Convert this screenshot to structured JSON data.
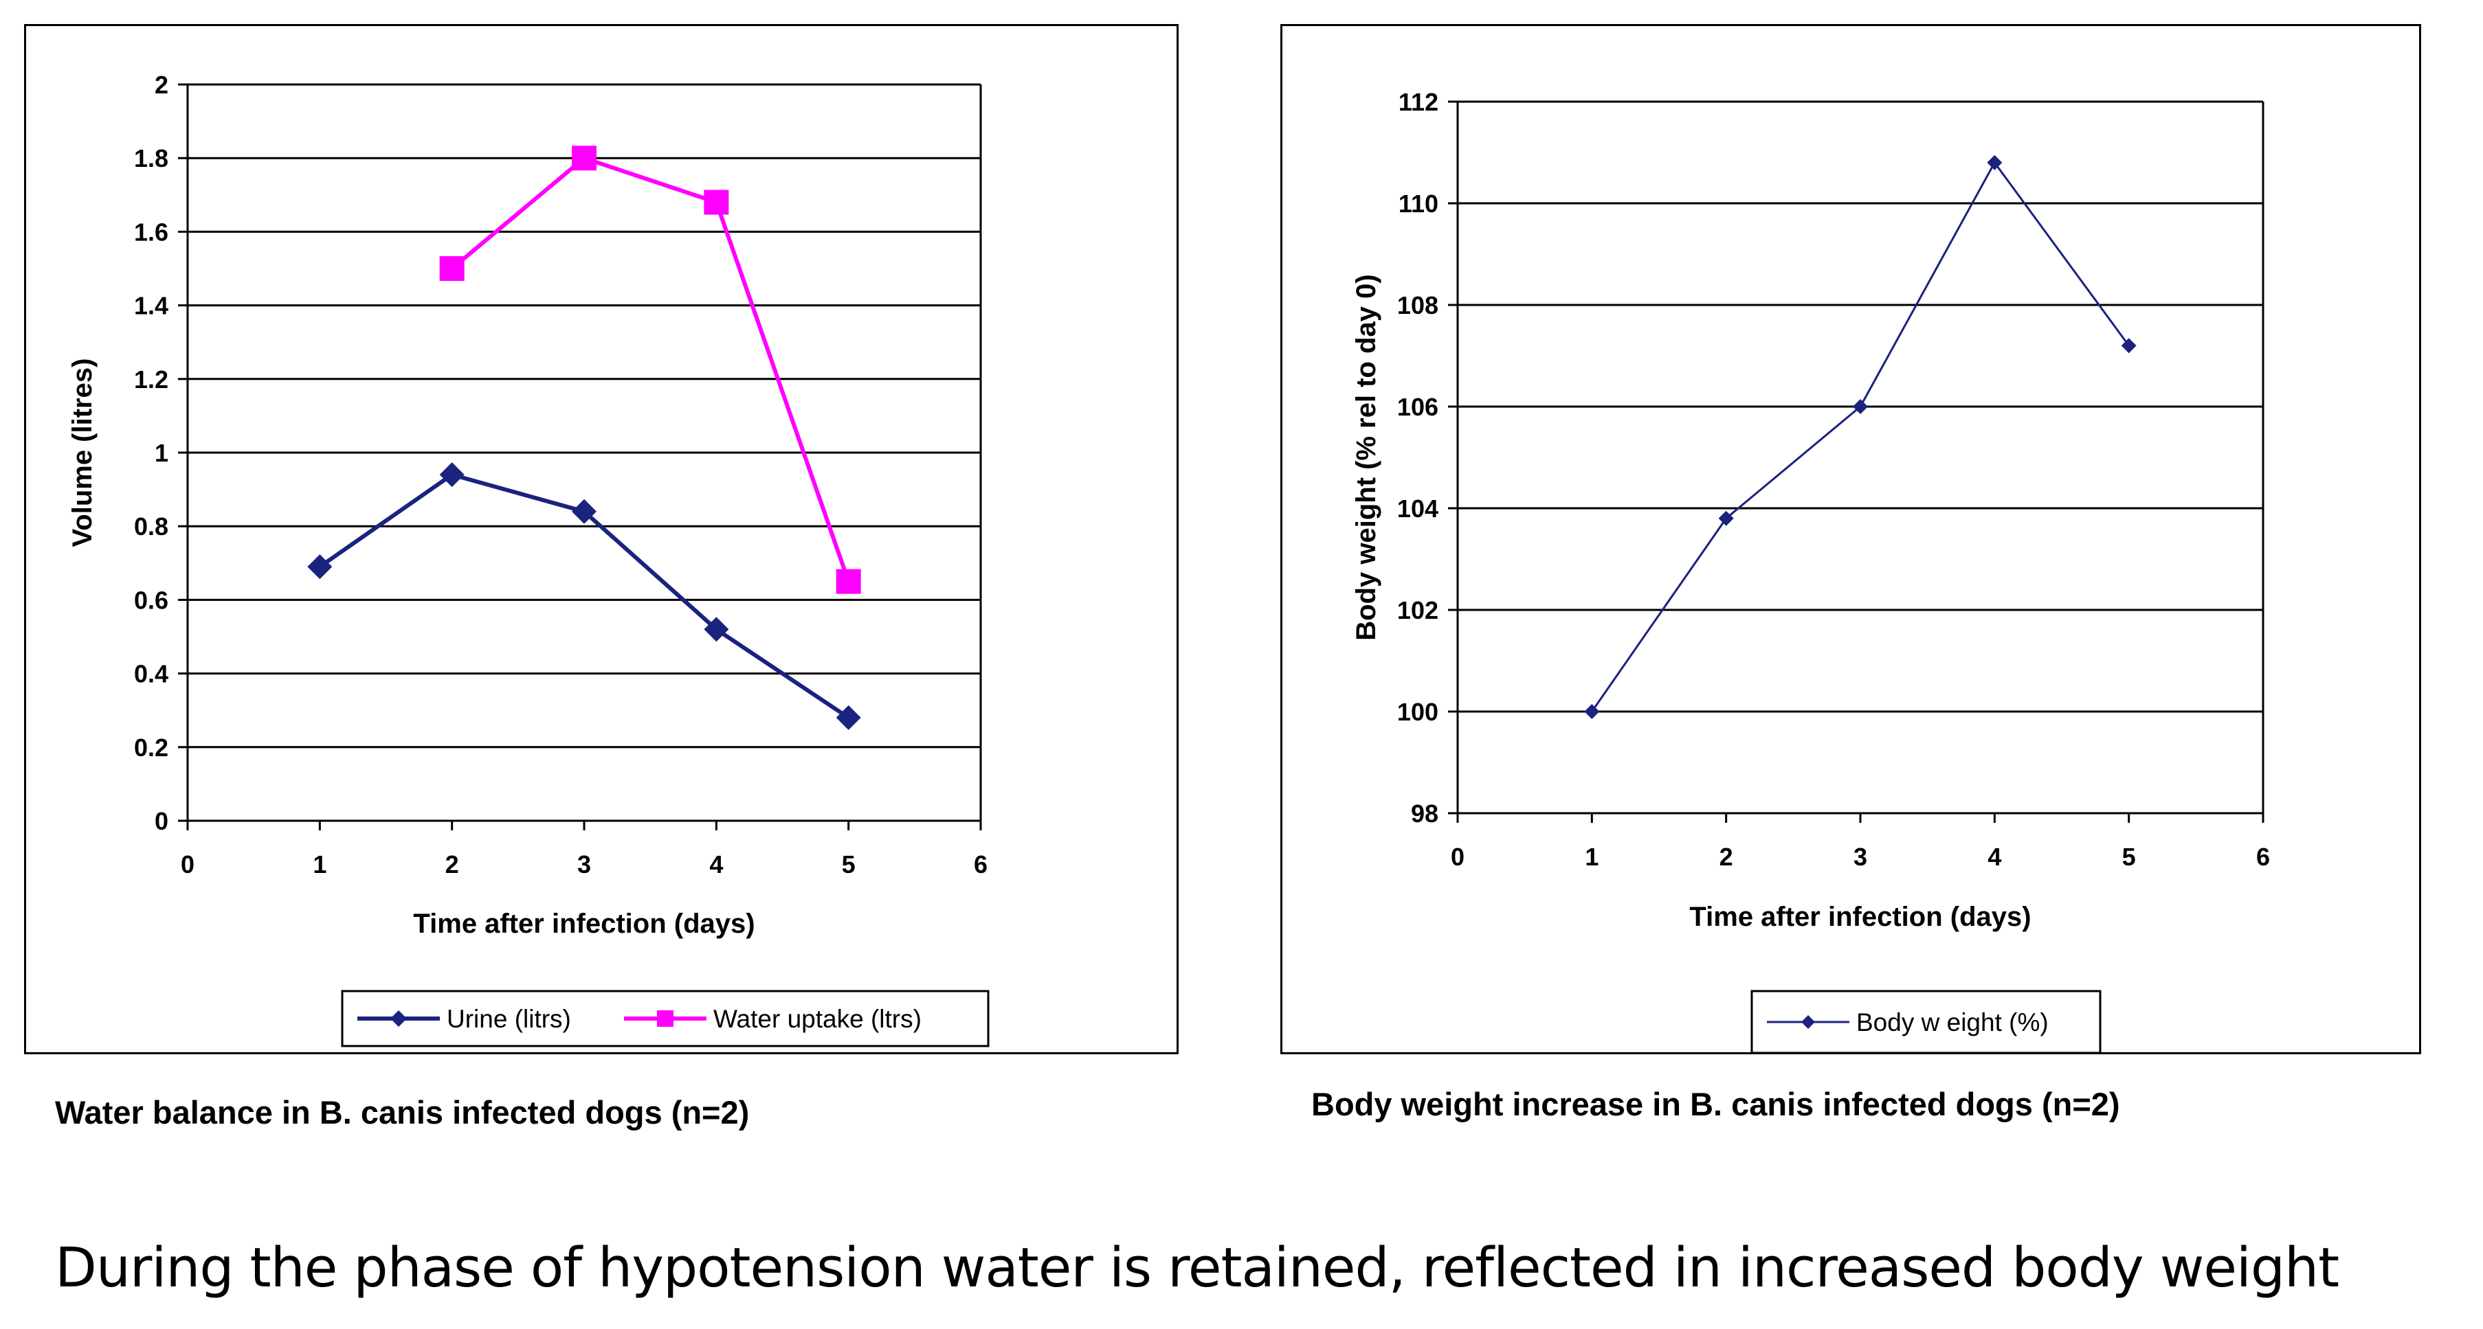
{
  "chart_data": [
    {
      "type": "line",
      "title": "",
      "xlabel": "Time after infection (days)",
      "ylabel": "Volume (litres)",
      "xlim": [
        0,
        6
      ],
      "ylim": [
        0,
        2
      ],
      "x_ticks": [
        "0",
        "1",
        "2",
        "3",
        "4",
        "5",
        "6"
      ],
      "y_ticks": [
        "0",
        "0.2",
        "0.4",
        "0.6",
        "0.8",
        "1",
        "1.2",
        "1.4",
        "1.6",
        "1.8",
        "2"
      ],
      "grid": "horizontal",
      "legend_position": "bottom",
      "series": [
        {
          "name": "Urine (litrs)",
          "color": "#1a237e",
          "marker": "diamond",
          "x": [
            1,
            2,
            3,
            4,
            5
          ],
          "y": [
            0.69,
            0.94,
            0.84,
            0.52,
            0.28
          ]
        },
        {
          "name": "Water uptake (ltrs)",
          "color": "#ff00ff",
          "marker": "square",
          "x": [
            2,
            3,
            4,
            5
          ],
          "y": [
            1.5,
            1.8,
            1.68,
            0.65
          ]
        }
      ]
    },
    {
      "type": "line",
      "title": "",
      "xlabel": "Time after infection (days)",
      "ylabel": "Body weight (% rel to day 0)",
      "xlim": [
        0,
        6
      ],
      "ylim": [
        98,
        112
      ],
      "x_ticks": [
        "0",
        "1",
        "2",
        "3",
        "4",
        "5",
        "6"
      ],
      "y_ticks": [
        "98",
        "100",
        "102",
        "104",
        "106",
        "108",
        "110",
        "112"
      ],
      "grid": "horizontal",
      "legend_position": "bottom",
      "series": [
        {
          "name": "Body w eight (%)",
          "color": "#1a237e",
          "marker": "diamond",
          "x": [
            1,
            2,
            3,
            4,
            5
          ],
          "y": [
            100,
            103.8,
            106,
            110.8,
            107.2
          ]
        }
      ]
    }
  ],
  "captions": {
    "left": "Water balance in B. canis infected dogs (n=2)",
    "right": "Body weight increase in B. canis infected dogs (n=2)"
  },
  "footer": "During the phase of hypotension water is retained, reflected in increased body weight"
}
